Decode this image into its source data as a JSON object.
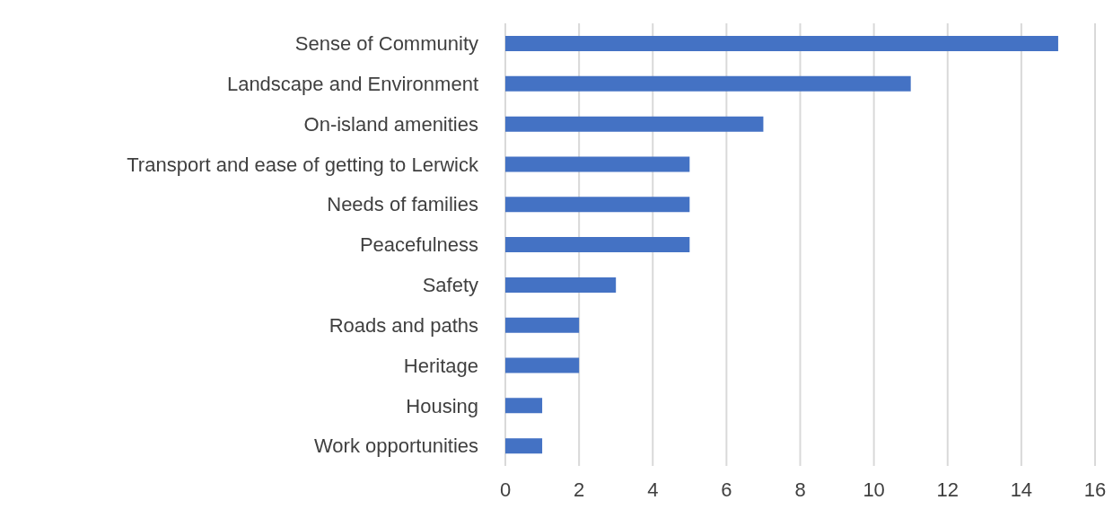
{
  "chart_data": {
    "type": "bar",
    "orientation": "horizontal",
    "categories": [
      "Sense of Community",
      "Landscape and Environment",
      "On-island amenities",
      "Transport and ease of getting to Lerwick",
      "Needs of families",
      "Peacefulness",
      "Safety",
      "Roads and paths",
      "Heritage",
      "Housing",
      "Work opportunities"
    ],
    "values": [
      15,
      11,
      7,
      5,
      5,
      5,
      3,
      2,
      2,
      1,
      1
    ],
    "color": "#4472c4",
    "xlim": [
      0,
      16
    ],
    "xticks": [
      0,
      2,
      4,
      6,
      8,
      10,
      12,
      14,
      16
    ],
    "grid": "x"
  }
}
